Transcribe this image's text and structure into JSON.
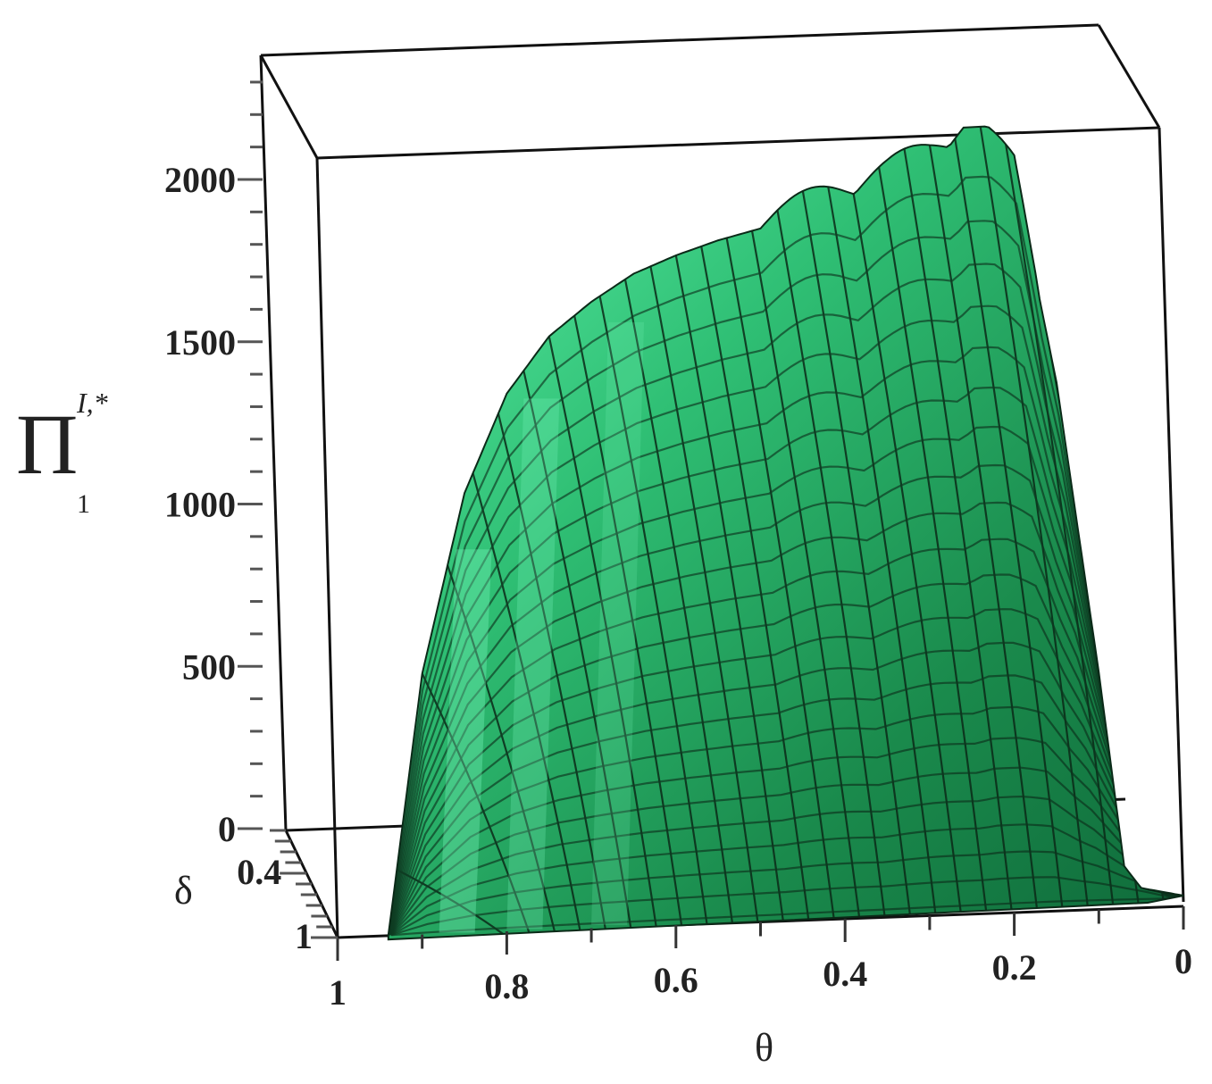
{
  "chart_data": {
    "type": "surface3d",
    "title": "",
    "zlabel": {
      "main": "Π",
      "superscript": "I,*",
      "subscript": "1"
    },
    "xlabel": "θ",
    "ylabel": "δ",
    "x_ticks": [
      "1",
      "0.8",
      "0.6",
      "0.4",
      "0.2",
      "0"
    ],
    "x_tick_values": [
      1,
      0.8,
      0.6,
      0.4,
      0.2,
      0
    ],
    "y_ticks": [
      "0.4",
      "1"
    ],
    "y_tick_values": [
      0.4,
      1
    ],
    "z_ticks": [
      "0",
      "500",
      "1000",
      "1500",
      "2000"
    ],
    "z_tick_values": [
      0,
      500,
      1000,
      1500,
      2000
    ],
    "xlim": [
      0,
      1
    ],
    "ylim": [
      0,
      1
    ],
    "zlim": [
      0,
      2400
    ],
    "ridge_profile": {
      "theta": [
        0.94,
        0.9,
        0.85,
        0.8,
        0.75,
        0.7,
        0.65,
        0.6,
        0.55,
        0.5,
        0.45,
        0.4,
        0.35,
        0.3,
        0.25,
        0.2,
        0.15,
        0.1,
        0.07,
        0.05,
        0
      ],
      "value": [
        0,
        800,
        1350,
        1650,
        1820,
        1920,
        2000,
        2050,
        2090,
        2120,
        2160,
        2200,
        2250,
        2310,
        2380,
        2250,
        1600,
        700,
        100,
        30,
        0
      ]
    },
    "colors": {
      "surface": "#1f9e55",
      "surface_light": "#5cf0a8",
      "surface_dark": "#0e5a32",
      "mesh": "#0b2a18",
      "box": "#111111"
    }
  }
}
